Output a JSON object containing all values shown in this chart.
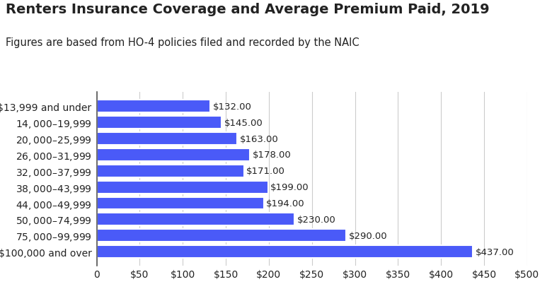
{
  "title": "Renters Insurance Coverage and Average Premium Paid, 2019",
  "subtitle": "Figures are based from HO-4 policies filed and recorded by the NAIC",
  "categories": [
    "$13,999 and under",
    "$14,000–$19,999",
    "$20,000–$25,999",
    "$26,000–$31,999",
    "$32,000–$37,999",
    "$38,000–$43,999",
    "$44,000–$49,999",
    "$50,000–$74,999",
    "$75,000–$99,999",
    "$100,000 and over"
  ],
  "values": [
    132,
    145,
    163,
    178,
    171,
    199,
    194,
    230,
    290,
    437
  ],
  "bar_color": "#4a5af8",
  "label_color": "#222222",
  "background_color": "#ffffff",
  "xlim": [
    0,
    500
  ],
  "xticks": [
    0,
    50,
    100,
    150,
    200,
    250,
    300,
    350,
    400,
    450,
    500
  ],
  "title_fontsize": 14,
  "subtitle_fontsize": 10.5,
  "ylabel_fontsize": 10,
  "tick_fontsize": 10,
  "value_fontsize": 9.5
}
